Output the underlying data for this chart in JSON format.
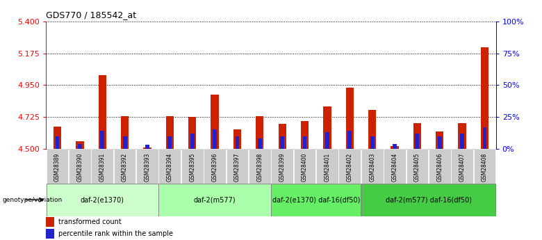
{
  "title": "GDS770 / 185542_at",
  "samples": [
    "GSM28389",
    "GSM28390",
    "GSM28391",
    "GSM28392",
    "GSM28393",
    "GSM28394",
    "GSM28395",
    "GSM28396",
    "GSM28397",
    "GSM28398",
    "GSM28399",
    "GSM28400",
    "GSM28401",
    "GSM28402",
    "GSM28403",
    "GSM28404",
    "GSM28405",
    "GSM28406",
    "GSM28407",
    "GSM28408"
  ],
  "transformed_count": [
    4.655,
    4.555,
    5.02,
    4.73,
    4.51,
    4.73,
    4.725,
    4.885,
    4.638,
    4.73,
    4.678,
    4.698,
    4.8,
    4.935,
    4.775,
    4.518,
    4.682,
    4.622,
    4.682,
    5.22
  ],
  "percentile_rank": [
    10,
    4,
    14,
    10,
    3,
    10,
    12,
    15,
    10,
    8,
    10,
    10,
    13,
    14,
    10,
    4,
    12,
    10,
    12,
    17
  ],
  "ymin": 4.5,
  "ymax": 5.4,
  "yticks": [
    4.5,
    4.725,
    4.95,
    5.175,
    5.4
  ],
  "right_yticks": [
    0,
    25,
    50,
    75,
    100
  ],
  "bar_color_red": "#cc2200",
  "bar_color_blue": "#2222cc",
  "red_bar_width": 0.35,
  "blue_bar_width": 0.18,
  "group_labels": [
    "daf-2(e1370)",
    "daf-2(m577)",
    "daf-2(e1370) daf-16(df50)",
    "daf-2(m577) daf-16(df50)"
  ],
  "group_ranges": [
    [
      0,
      4
    ],
    [
      5,
      9
    ],
    [
      10,
      13
    ],
    [
      14,
      19
    ]
  ],
  "group_colors": [
    "#ccffcc",
    "#aaffaa",
    "#66ee66",
    "#44cc44"
  ],
  "tick_bg_color": "#cccccc",
  "genotype_label": "genotype/variation",
  "legend_red": "transformed count",
  "legend_blue": "percentile rank within the sample"
}
